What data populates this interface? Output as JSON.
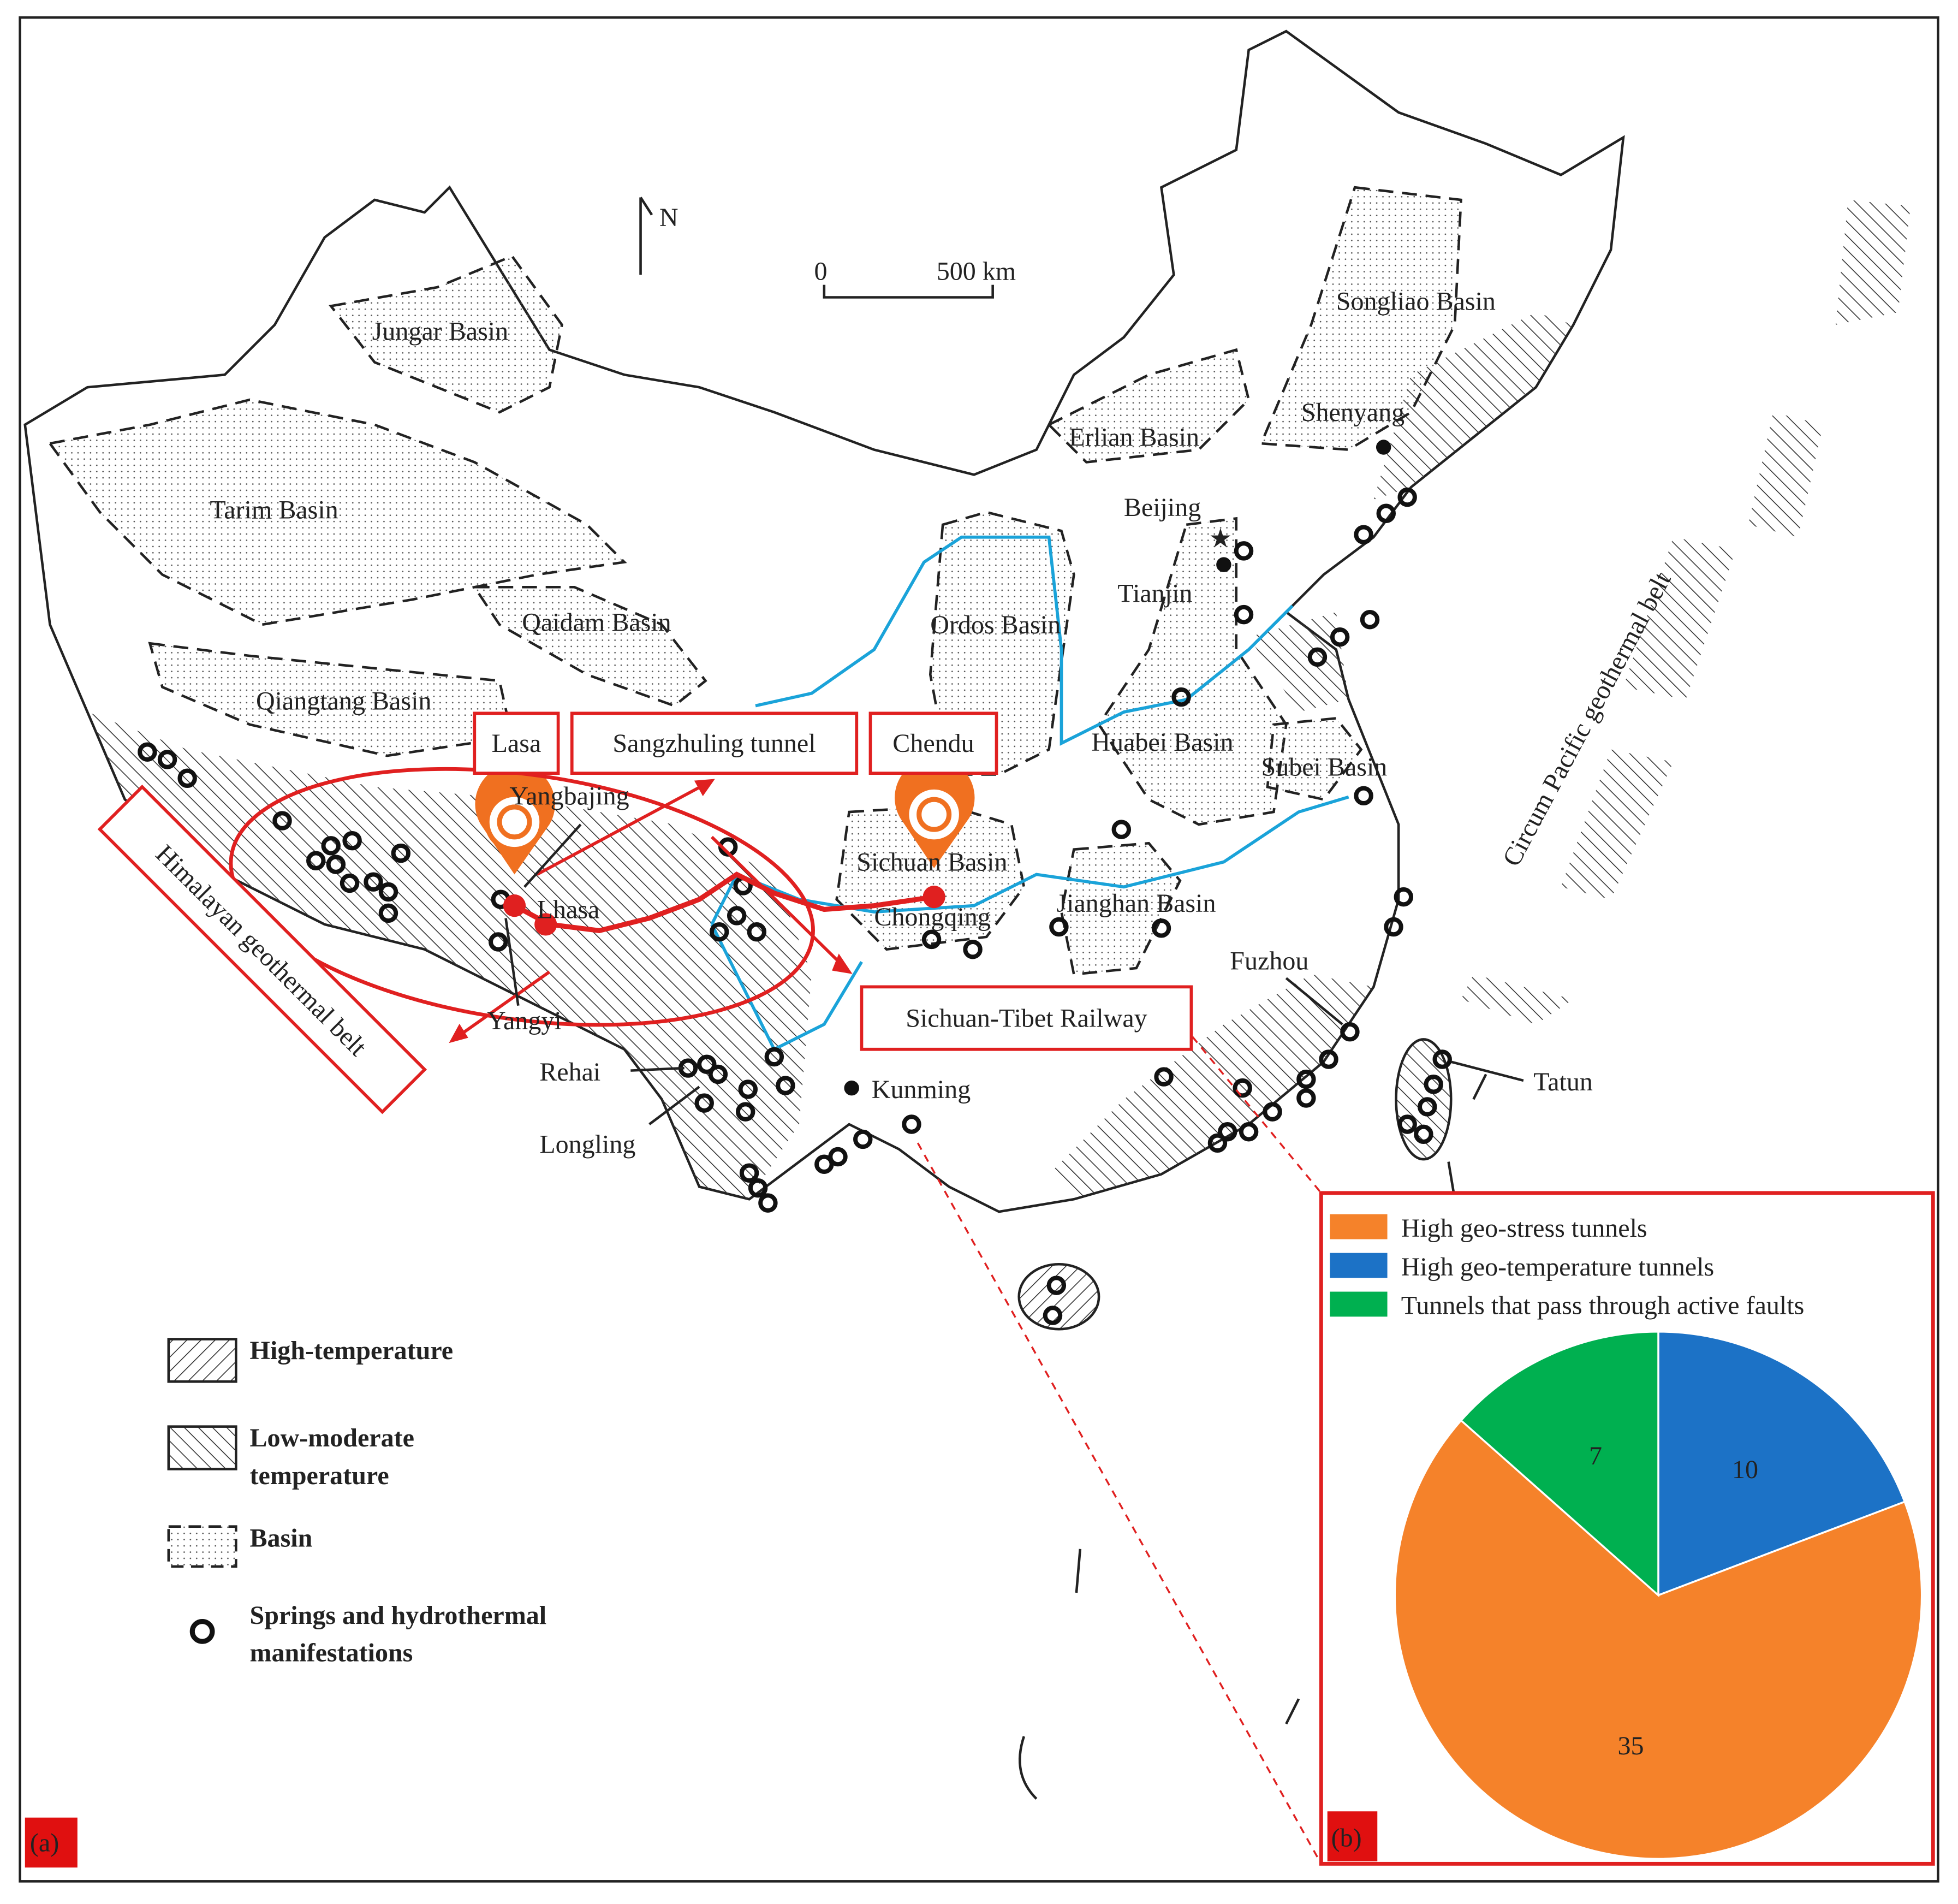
{
  "panel_labels": [
    "(a)",
    "(b)"
  ],
  "map": {
    "north": "N",
    "scale": [
      "0",
      "500 km"
    ],
    "basins": [
      "Jungar Basin",
      "Tarim Basin",
      "Qaidam Basin",
      "Qiangtang Basin",
      "Ordos Basin",
      "Erlian Basin",
      "Songliao Basin",
      "Huabei Basin",
      "Subei Basin",
      "Sichuan Basin",
      "Jianghan Basin"
    ],
    "cities": [
      "Shenyang",
      "Beijing",
      "Tianjin",
      "Chongqing",
      "Kunming",
      "Lhasa",
      "Fuzhou"
    ],
    "sites": [
      "Yangbajing",
      "Yangyi",
      "Rehai",
      "Longling",
      "Tatun"
    ],
    "callouts": [
      "Lasa",
      "Sangzhuling tunnel",
      "Chendu",
      "Sichuan-Tibet Railway",
      "Himalayan geothermal belt"
    ],
    "belt": "Circum Pacific geothermal belt"
  },
  "legend": [
    [
      "High-temperature"
    ],
    [
      "Low-moderate",
      "temperature"
    ],
    [
      "Basin"
    ],
    [
      "Springs and hydrothermal",
      "manifestations"
    ]
  ],
  "chart_data": {
    "type": "pie",
    "categories": [
      "High geo-stress tunnels",
      "High geo-temperature tunnels",
      "Tunnels that pass through active faults"
    ],
    "values": [
      35,
      10,
      7
    ],
    "colors": [
      "#f5822a",
      "#1c72c6",
      "#00b050"
    ]
  }
}
